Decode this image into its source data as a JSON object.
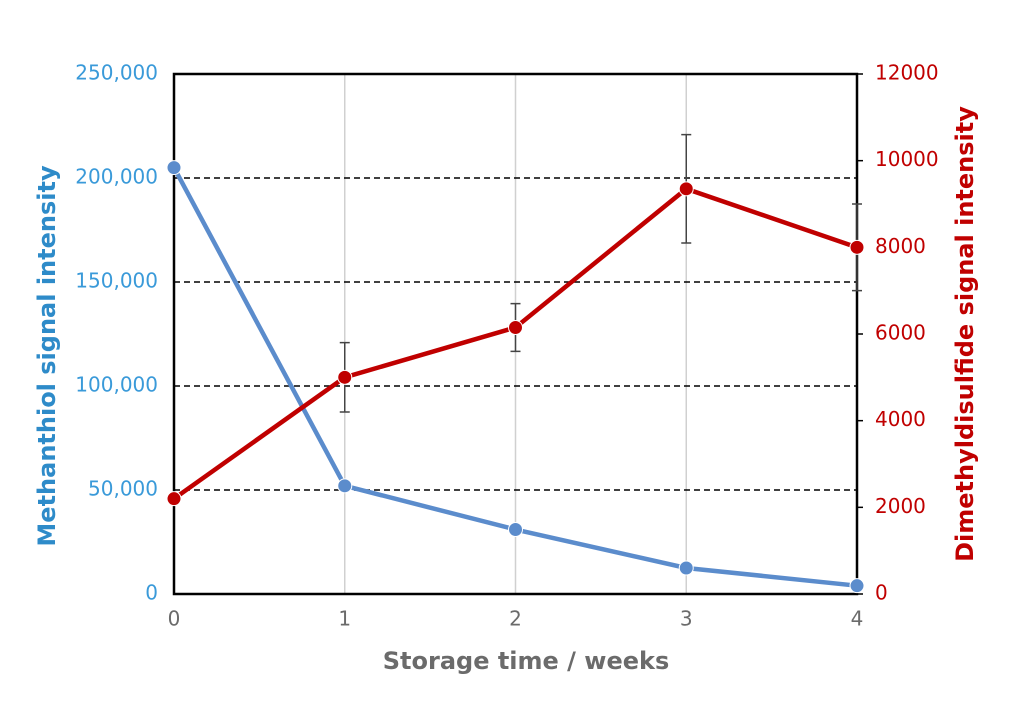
{
  "chart_data": {
    "type": "line",
    "xlabel": "Storage time / weeks",
    "ylabel": "Methanthiol signal intensity",
    "y2label": "Dimethyldisulfide signal intensity",
    "x": [
      0,
      1,
      2,
      3,
      4
    ],
    "xlim": [
      0,
      4
    ],
    "xticks": [
      0,
      1,
      2,
      3,
      4
    ],
    "ylim": [
      0,
      250000
    ],
    "yticks": [
      {
        "value": 0,
        "label": "0"
      },
      {
        "value": 50000,
        "label": "50,000"
      },
      {
        "value": 100000,
        "label": "100,000"
      },
      {
        "value": 150000,
        "label": "150,000"
      },
      {
        "value": 200000,
        "label": "200,000"
      },
      {
        "value": 250000,
        "label": "250,000"
      }
    ],
    "y2lim": [
      0,
      12000
    ],
    "y2ticks": [
      0,
      2000,
      4000,
      6000,
      8000,
      10000,
      12000
    ],
    "grid": true,
    "series": [
      {
        "name": "Methanthiol",
        "color": "#5b8ccc",
        "axis": "y",
        "values": [
          205000,
          52000,
          31000,
          12500,
          4000
        ]
      },
      {
        "name": "Dimethyldisulfide",
        "color": "#c00000",
        "axis": "y2",
        "values": [
          2200,
          5000,
          6150,
          9350,
          8000
        ],
        "errors": [
          null,
          800,
          550,
          1250,
          1000
        ]
      }
    ]
  }
}
